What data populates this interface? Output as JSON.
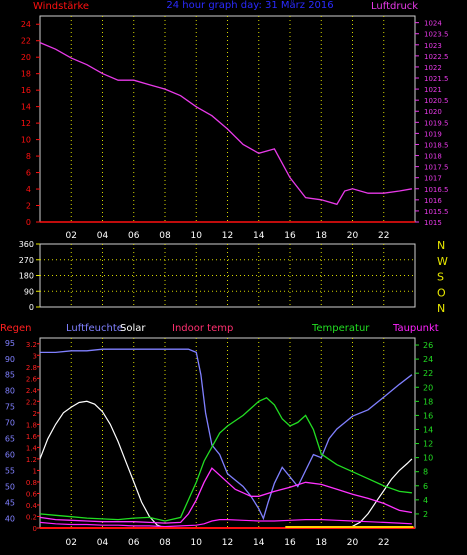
{
  "header": {
    "left_label": "Windstärke",
    "title": "24 hour graph day: 31 März 2016",
    "right_label": "Luftdruck"
  },
  "colors": {
    "background": "#000000",
    "grid": "#d8d800",
    "left_axis_red": "#ff1010",
    "title_blue": "#2a2aff",
    "pressure_magenta": "#e83ae8",
    "humidity_blue": "#8080ff",
    "solar_white": "#ffffff",
    "indoor_magenta": "#ff33ff",
    "temperature_green": "#22dd22",
    "dewpoint_magenta": "#ff22ff",
    "rain_label_red": "#ff2020",
    "indoor_label": "#ff3070",
    "direction_yellow": "#e8e800"
  },
  "x_ticks": [
    "02",
    "04",
    "06",
    "08",
    "10",
    "12",
    "14",
    "16",
    "18",
    "20",
    "22"
  ],
  "chart_data": [
    {
      "type": "line",
      "name": "top",
      "x_range": [
        0,
        24
      ],
      "left_axis": {
        "label": "Windstärke",
        "ticks": [
          0,
          2,
          4,
          6,
          8,
          10,
          12,
          14,
          16,
          18,
          20,
          22,
          24
        ],
        "range": [
          0,
          25
        ]
      },
      "right_axis": {
        "label": "Luftdruck",
        "ticks": [
          "1015",
          "1015.5",
          "1016",
          "1016.5",
          "1017",
          "1017.5",
          "1018",
          "1018.5",
          "1019",
          "1019.5",
          "1020",
          "1020.5",
          "1021",
          "1021.5",
          "1022",
          "1022.5",
          "1023",
          "1023.5",
          "1024"
        ],
        "range": [
          1015,
          1024.3
        ]
      },
      "series": [
        {
          "name": "Luftdruck",
          "x": [
            0,
            1,
            2,
            3,
            4,
            5,
            6,
            7,
            8,
            9,
            10,
            11,
            12,
            13,
            14,
            15,
            16,
            17,
            18,
            19,
            19.5,
            20,
            21,
            22,
            23,
            23.8
          ],
          "y": [
            1023.1,
            1022.8,
            1022.4,
            1022.1,
            1021.7,
            1021.4,
            1021.4,
            1021.2,
            1021.0,
            1020.7,
            1020.2,
            1019.8,
            1019.2,
            1018.5,
            1018.1,
            1018.3,
            1017.0,
            1016.1,
            1016.0,
            1015.8,
            1016.4,
            1016.5,
            1016.3,
            1016.3,
            1016.4,
            1016.5
          ]
        },
        {
          "name": "Windstärke",
          "x": [
            0,
            24
          ],
          "y": [
            0,
            0
          ]
        }
      ]
    },
    {
      "type": "line",
      "name": "direction",
      "x_range": [
        0,
        24
      ],
      "left_axis": {
        "ticks": [
          0,
          90,
          180,
          270,
          360
        ],
        "range": [
          0,
          360
        ]
      },
      "right_axis": {
        "labels": [
          "N",
          "W",
          "S",
          "O",
          "N"
        ]
      },
      "series": []
    },
    {
      "type": "line",
      "name": "bottom",
      "x_range": [
        0,
        24
      ],
      "legend": [
        "Regen",
        "Luftfeuchte",
        "Solar",
        "Indoor temp",
        "Temperatur",
        "Taupunkt"
      ],
      "left_axis_rain": {
        "label": "Regen",
        "ticks": [
          "0",
          "0.2",
          "0.4",
          "0.6",
          "0.8",
          "1",
          "1.2",
          "1.4",
          "1.6",
          "1.8",
          "2",
          "2.2",
          "2.4",
          "2.6",
          "2.8",
          "3",
          "3.2"
        ],
        "range": [
          0,
          3.3
        ]
      },
      "left_axis_humidity": {
        "label": "Luftfeuchte",
        "ticks": [
          40,
          45,
          50,
          55,
          60,
          65,
          70,
          75,
          80,
          85,
          90,
          95
        ],
        "range": [
          37,
          96.5
        ]
      },
      "right_axis_temp": {
        "label": "Temperatur",
        "ticks": [
          2,
          4,
          6,
          8,
          10,
          12,
          14,
          16,
          18,
          20,
          22,
          24,
          26
        ],
        "range": [
          0,
          27
        ]
      },
      "series": [
        {
          "name": "Luftfeuchte",
          "x": [
            0,
            1,
            2,
            3,
            4,
            5,
            6,
            7,
            8,
            9,
            9.5,
            10,
            10.3,
            10.6,
            11,
            11.5,
            12,
            12.5,
            13,
            13.5,
            14,
            14.3,
            14.6,
            15,
            15.5,
            16,
            16.5,
            17,
            17.5,
            18,
            18.5,
            19,
            19.5,
            20,
            21,
            22,
            23,
            23.8
          ],
          "y": [
            92,
            92,
            92.5,
            92.5,
            93,
            93,
            93,
            93,
            93,
            93,
            93,
            92,
            85,
            73,
            63,
            60,
            54,
            52,
            50,
            47,
            43,
            40,
            45,
            51,
            56,
            53,
            50,
            55,
            60,
            59,
            65,
            68,
            70,
            72,
            74,
            78,
            82,
            85
          ]
        },
        {
          "name": "Solar",
          "x": [
            0,
            0.5,
            1,
            1.5,
            2,
            2.5,
            3,
            3.5,
            4,
            4.5,
            5,
            5.5,
            6,
            6.5,
            7,
            7.5,
            8,
            19.8,
            20.5,
            21,
            21.5,
            22,
            22.5,
            23,
            23.5,
            23.8
          ],
          "y": [
            1.2,
            1.55,
            1.8,
            2.0,
            2.1,
            2.18,
            2.2,
            2.15,
            2.02,
            1.8,
            1.5,
            1.15,
            0.8,
            0.45,
            0.2,
            0.05,
            0,
            0,
            0.1,
            0.25,
            0.45,
            0.65,
            0.85,
            1.0,
            1.12,
            1.2
          ]
        },
        {
          "name": "Indoor temp",
          "x": [
            0,
            1,
            2,
            3,
            4,
            5,
            6,
            7,
            8,
            9,
            9.5,
            10,
            10.5,
            11,
            11.5,
            12,
            12.5,
            13,
            13.5,
            14,
            15,
            16,
            17,
            18,
            19,
            20,
            21,
            22,
            23,
            23.8
          ],
          "y": [
            1.5,
            1.2,
            1.1,
            1.0,
            0.9,
            0.9,
            0.9,
            0.8,
            0.7,
            0.8,
            2.0,
            4.0,
            6.5,
            8.5,
            7.5,
            6.5,
            5.5,
            5.0,
            4.5,
            4.5,
            5.2,
            5.8,
            6.5,
            6.2,
            5.5,
            4.8,
            4.2,
            3.5,
            2.5,
            2.2
          ]
        },
        {
          "name": "Temperatur",
          "x": [
            0,
            1,
            2,
            3,
            4,
            5,
            6,
            7,
            8,
            9,
            9.5,
            10,
            10.5,
            11,
            11.5,
            12,
            13,
            13.5,
            14,
            14.5,
            15,
            15.5,
            16,
            16.5,
            17,
            17.5,
            18,
            19,
            20,
            21,
            22,
            23,
            23.8
          ],
          "y": [
            2.0,
            1.8,
            1.6,
            1.4,
            1.3,
            1.2,
            1.4,
            1.5,
            1.0,
            1.5,
            4.0,
            6.5,
            9.5,
            11.5,
            13.5,
            14.5,
            16.0,
            17.0,
            18.0,
            18.5,
            17.5,
            15.5,
            14.5,
            15.0,
            16.0,
            14.0,
            10.5,
            9.0,
            8.0,
            7.0,
            6.0,
            5.2,
            5.0
          ]
        },
        {
          "name": "Taupunkt",
          "x": [
            0,
            1,
            2,
            3,
            4,
            5,
            6,
            7,
            8,
            9,
            10,
            10.5,
            11,
            11.5,
            12,
            13,
            14,
            15,
            16,
            17,
            18,
            19,
            20,
            21,
            22,
            23,
            23.8
          ],
          "y": [
            0.8,
            0.6,
            0.5,
            0.5,
            0.4,
            0.4,
            0.3,
            0.3,
            0.2,
            0.3,
            0.4,
            0.6,
            1.0,
            1.2,
            1.2,
            1.1,
            1.0,
            1.0,
            1.1,
            1.2,
            1.2,
            1.1,
            1.0,
            0.9,
            0.8,
            0.7,
            0.6
          ]
        },
        {
          "name": "Regen",
          "x": [
            0,
            24
          ],
          "y": [
            0,
            0
          ]
        }
      ]
    }
  ]
}
